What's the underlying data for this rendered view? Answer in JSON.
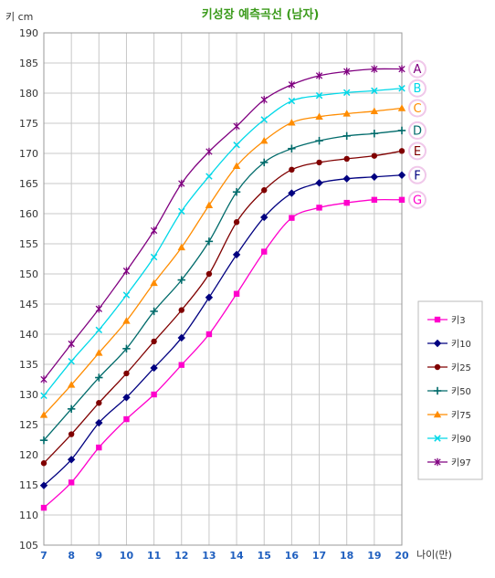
{
  "chart_data": {
    "type": "line",
    "title": "키성장 예측곡선 (남자)",
    "ylabel": "키 cm",
    "xlabel": "나이(만)",
    "title_color": "#3a9a1a",
    "x": [
      7,
      8,
      9,
      10,
      11,
      12,
      13,
      14,
      15,
      16,
      17,
      18,
      19,
      20
    ],
    "xlim": [
      7,
      20
    ],
    "ylim": [
      105,
      190
    ],
    "ytick_step": 5,
    "grid": true,
    "legend_position": "right",
    "series": [
      {
        "name": "키3",
        "letter": "G",
        "color": "#ff00cc",
        "marker": "square",
        "values": [
          111.2,
          115.4,
          121.2,
          125.9,
          130.0,
          134.9,
          140.0,
          146.7,
          153.7,
          159.3,
          161.0,
          161.8,
          162.3,
          162.3
        ]
      },
      {
        "name": "키10",
        "letter": "F",
        "color": "#000080",
        "marker": "diamond",
        "values": [
          114.9,
          119.2,
          125.3,
          129.5,
          134.4,
          139.4,
          146.1,
          153.2,
          159.4,
          163.4,
          165.1,
          165.8,
          166.1,
          166.4
        ]
      },
      {
        "name": "키25",
        "letter": "E",
        "color": "#800000",
        "marker": "circle",
        "values": [
          118.6,
          123.4,
          128.6,
          133.5,
          138.8,
          144.0,
          150.0,
          158.6,
          163.9,
          167.3,
          168.5,
          169.1,
          169.6,
          170.4
        ]
      },
      {
        "name": "키50",
        "letter": "D",
        "color": "#006b6b",
        "marker": "plus",
        "values": [
          122.4,
          127.6,
          132.8,
          137.6,
          143.8,
          149.0,
          155.4,
          163.6,
          168.5,
          170.8,
          172.1,
          172.9,
          173.3,
          173.8
        ]
      },
      {
        "name": "키75",
        "letter": "C",
        "color": "#ff8c00",
        "marker": "triangle",
        "values": [
          126.6,
          131.6,
          136.9,
          142.2,
          148.5,
          154.4,
          161.4,
          167.9,
          172.1,
          175.1,
          176.1,
          176.6,
          177.0,
          177.5
        ]
      },
      {
        "name": "키90",
        "letter": "B",
        "color": "#00d8e8",
        "marker": "x",
        "values": [
          129.8,
          135.5,
          140.7,
          146.5,
          152.8,
          160.4,
          166.2,
          171.4,
          175.6,
          178.7,
          179.6,
          180.1,
          180.4,
          180.8
        ]
      },
      {
        "name": "키97",
        "letter": "A",
        "color": "#800080",
        "marker": "star",
        "values": [
          132.5,
          138.4,
          144.2,
          150.5,
          157.2,
          165.0,
          170.3,
          174.5,
          178.9,
          181.4,
          182.9,
          183.6,
          184.0,
          184.0
        ]
      }
    ]
  }
}
